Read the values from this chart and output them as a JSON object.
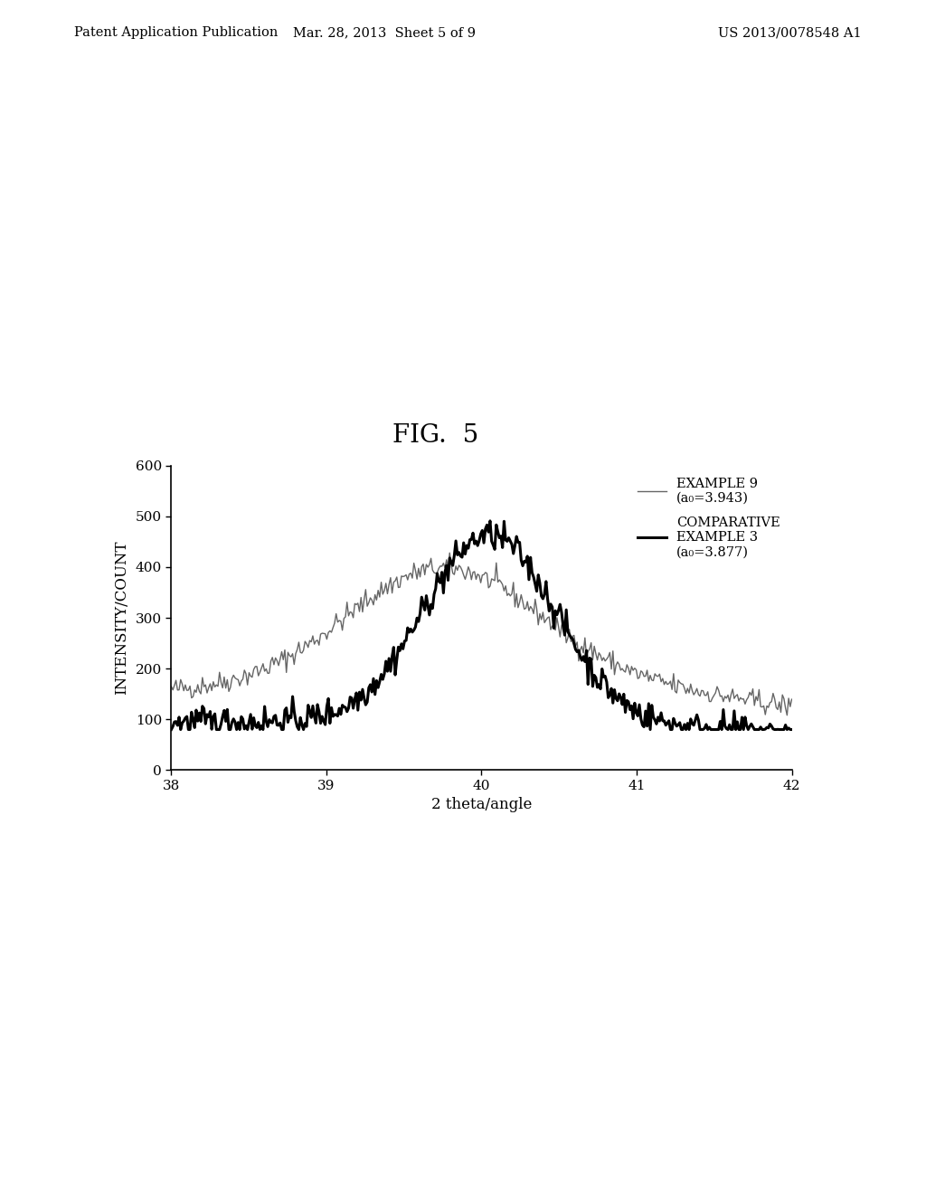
{
  "title": "FIG.  5",
  "xlabel": "2 theta/angle",
  "ylabel": "INTENSITY/COUNT",
  "xlim": [
    38,
    42
  ],
  "ylim": [
    0,
    600
  ],
  "xticks": [
    38,
    39,
    40,
    41,
    42
  ],
  "yticks": [
    0,
    100,
    200,
    300,
    400,
    500,
    600
  ],
  "legend_example9": "EXAMPLE 9\n(a₀=3.943)",
  "legend_comp3": "COMPARATIVE\nEXAMPLE 3\n(a₀=3.877)",
  "example9_color": "#666666",
  "comp3_color": "#000000",
  "example9_linewidth": 1.0,
  "comp3_linewidth": 2.2,
  "background_color": "#ffffff",
  "header_left": "Patent Application Publication",
  "header_center": "Mar. 28, 2013  Sheet 5 of 9",
  "header_right": "US 2013/0078548 A1",
  "fig_label": "FIG.  5"
}
